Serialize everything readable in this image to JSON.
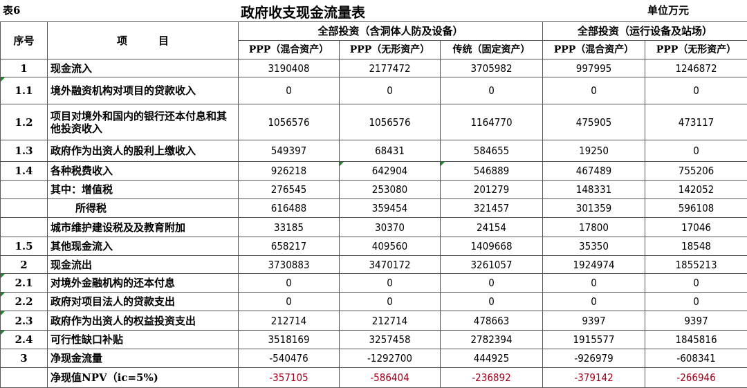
{
  "table_label": "表6",
  "title": "政府收支现金流量表",
  "unit": "单位万元",
  "headers": {
    "seq": "序号",
    "item": "项　　　目",
    "group1": "全部投资（含洞体人防及设备）",
    "group2": "全部投资（运行设备及站场）",
    "columns": [
      "PPP（混合资产）",
      "PPP（无形资产）",
      "传统（固定资产）",
      "PPP（混合资产）",
      "PPP（无形资产）"
    ]
  },
  "colors": {
    "npv_text": "#a0001a",
    "comment_marker": "#1a8a2a"
  },
  "rows": [
    {
      "seq": "1",
      "item": "现金流入",
      "values": [
        "3190408",
        "2177472",
        "3705982",
        "997995",
        "1246872"
      ]
    },
    {
      "seq": "1.1",
      "item": "境外融资机构对项目的贷款收入",
      "values": [
        "0",
        "0",
        "0",
        "0",
        "0"
      ]
    },
    {
      "seq": "1.2",
      "item": "项目对境外和国内的银行还本付息和其他投资收入",
      "values": [
        "1056576",
        "1056576",
        "1164770",
        "475905",
        "473117"
      ]
    },
    {
      "seq": "1.3",
      "item": "政府作为出资人的股利上缴收入",
      "values": [
        "549397",
        "68431",
        "584655",
        "19250",
        "0"
      ]
    },
    {
      "seq": "1.4",
      "item": "各种税费收入",
      "values": [
        "926218",
        "642904",
        "546889",
        "467489",
        "755206"
      ]
    },
    {
      "seq": "",
      "item": "其中：增值税",
      "values": [
        "276545",
        "253080",
        "201279",
        "148331",
        "142052"
      ]
    },
    {
      "seq": "",
      "item": "所得税",
      "values": [
        "616488",
        "359454",
        "321457",
        "301359",
        "596108"
      ]
    },
    {
      "seq": "",
      "item": "城市维护建设税及及教育附加",
      "values": [
        "33185",
        "30370",
        "24154",
        "17800",
        "17046"
      ]
    },
    {
      "seq": "1.5",
      "item": "其他现金流入",
      "values": [
        "658217",
        "409560",
        "1409668",
        "35350",
        "18548"
      ]
    },
    {
      "seq": "2",
      "item": "现金流出",
      "values": [
        "3730883",
        "3470172",
        "3261057",
        "1924974",
        "1855213"
      ]
    },
    {
      "seq": "2.1",
      "item": "对境外金融机构的还本付息",
      "values": [
        "0",
        "0",
        "0",
        "0",
        "0"
      ]
    },
    {
      "seq": "2.2",
      "item": "政府对项目法人的贷款支出",
      "values": [
        "0",
        "0",
        "0",
        "0",
        "0"
      ]
    },
    {
      "seq": "2.3",
      "item": "政府作为出资人的权益投资支出",
      "values": [
        "212714",
        "212714",
        "478663",
        "9397",
        "9397"
      ]
    },
    {
      "seq": "2.4",
      "item": "可行性缺口补贴",
      "values": [
        "3518169",
        "3257458",
        "2782394",
        "1915577",
        "1845816"
      ]
    },
    {
      "seq": "3",
      "item": "净现金流量",
      "values": [
        "-540476",
        "-1292700",
        "444925",
        "-926979",
        "-608341"
      ]
    },
    {
      "seq": "",
      "item": "净现值NPV（ic=5%)",
      "values": [
        "-357105",
        "-586404",
        "-236892",
        "-379142",
        "-266946"
      ]
    }
  ]
}
